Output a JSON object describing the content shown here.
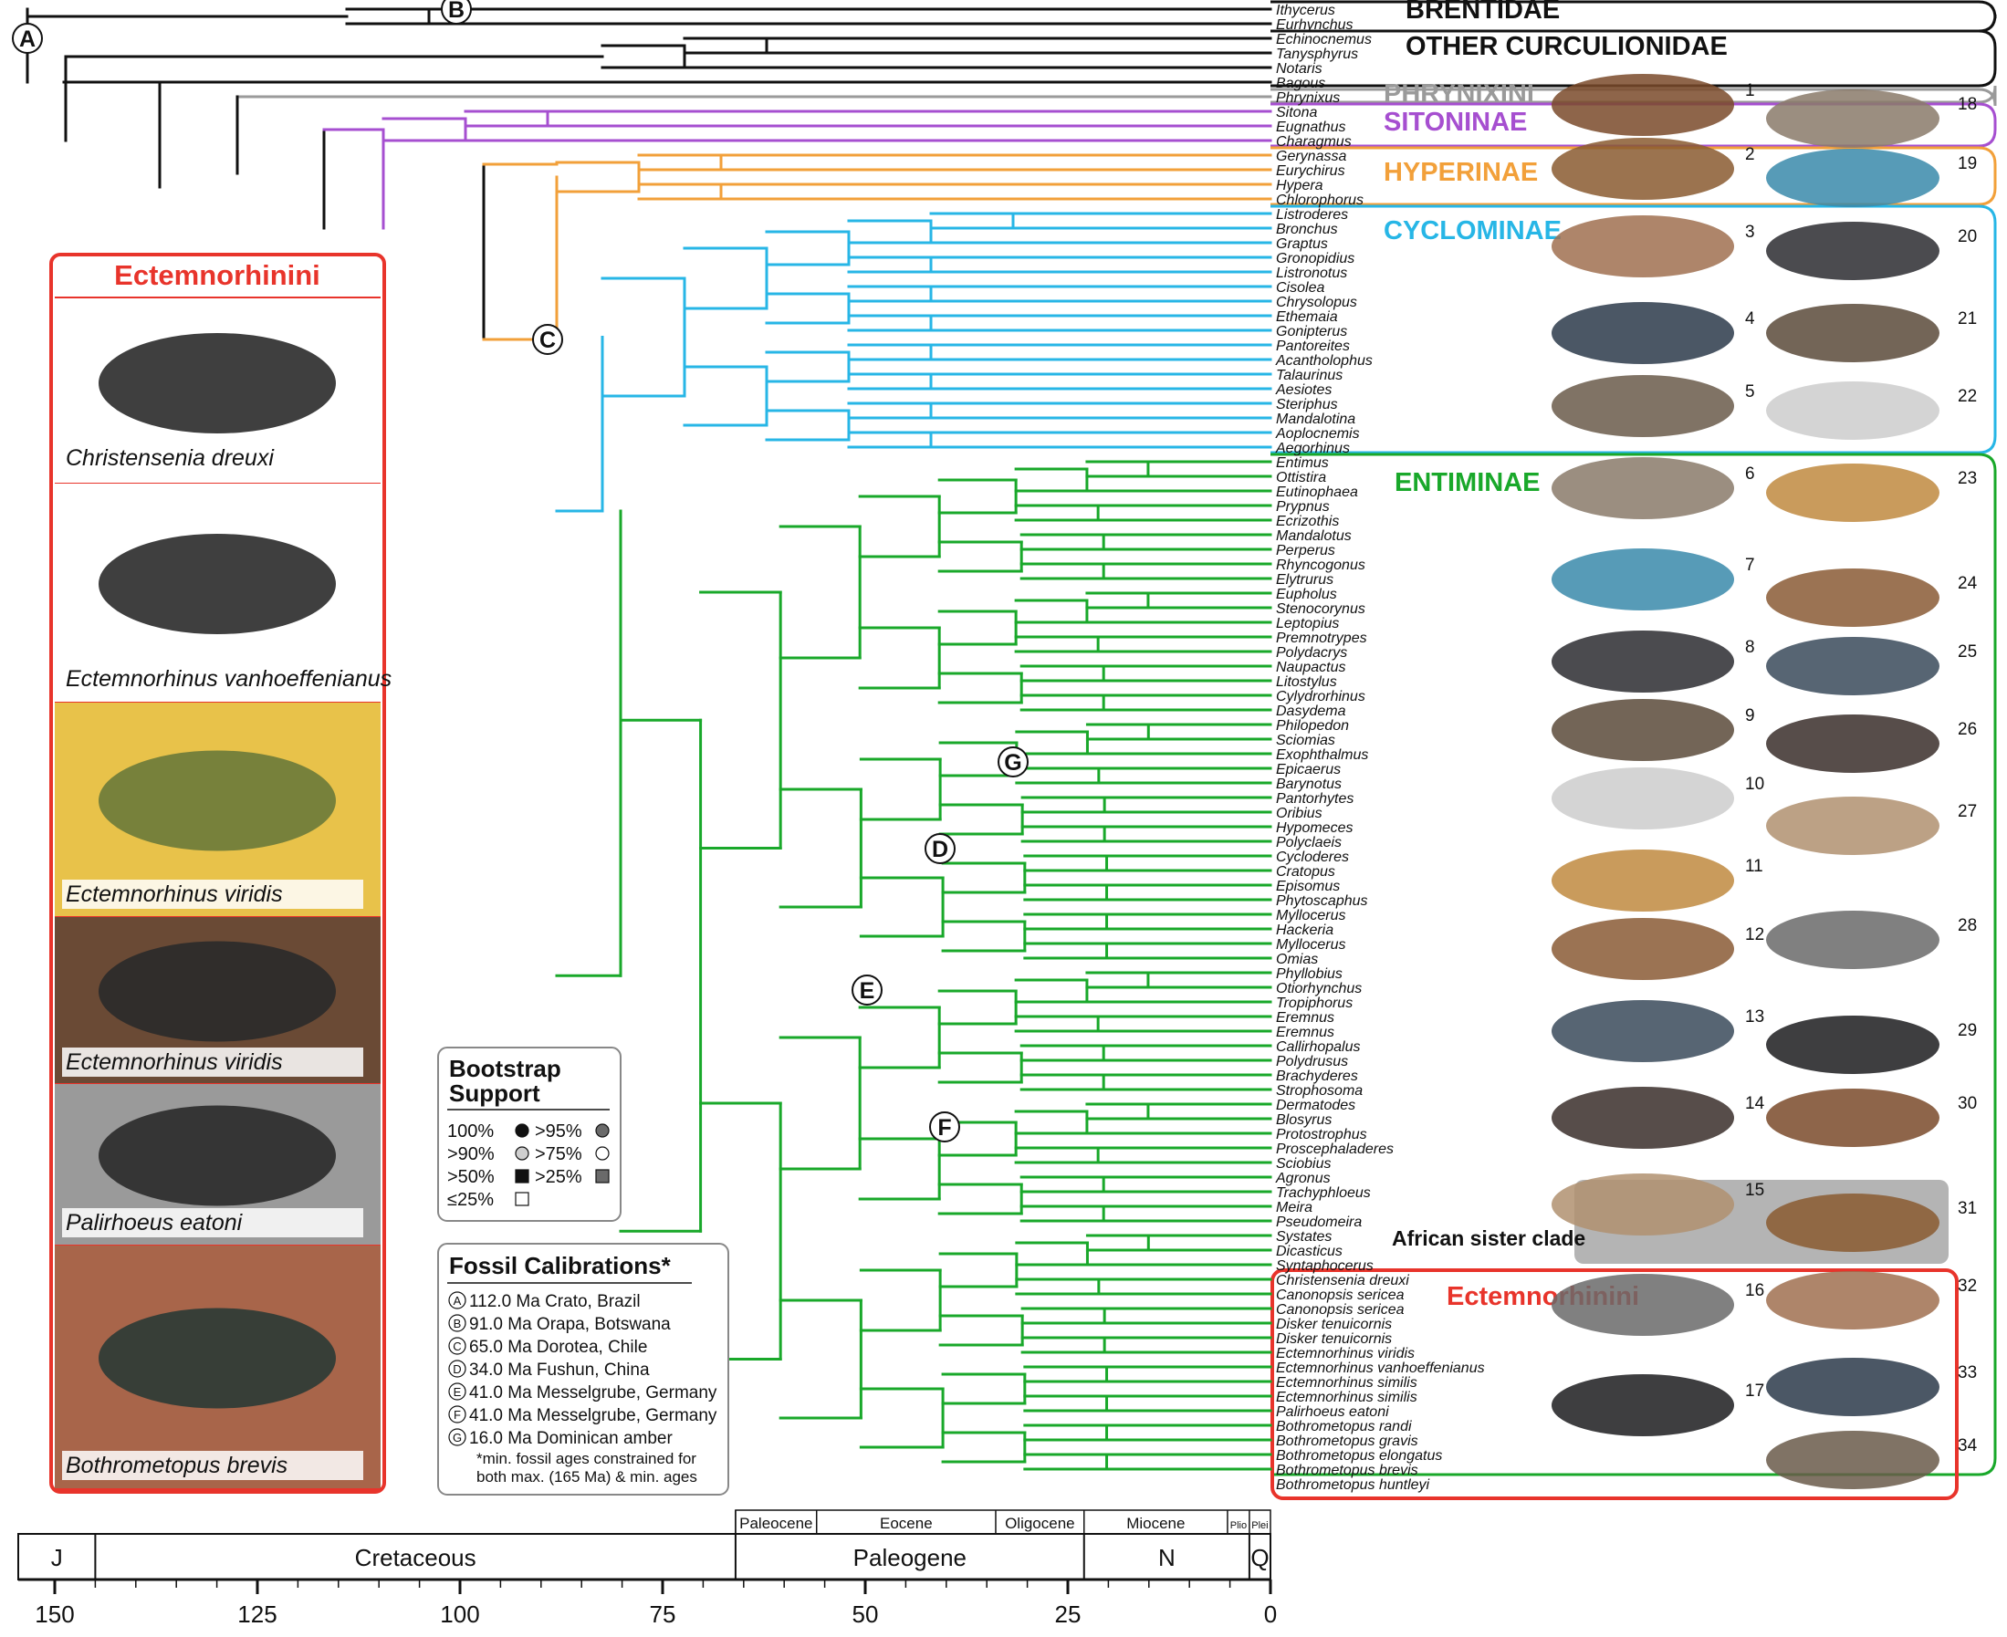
{
  "colors": {
    "outgroup": "#111111",
    "phrynixini": "#9a9a9a",
    "sitoninae": "#a64fd0",
    "hyperinae": "#f2a03a",
    "cyclominae": "#27b6e6",
    "entiminae": "#19a82a",
    "ectemnorhinini": "#e8342b",
    "african_box": "#b4b4b4"
  },
  "taxa": [
    "Ithycerus",
    "Eurhynchus",
    "Echinocnemus",
    "Tanysphyrus",
    "Notaris",
    "Bagous",
    "Phrynixus",
    "Sitona",
    "Eugnathus",
    "Charagmus",
    "Gerynassa",
    "Eurychirus",
    "Hypera",
    "Chlorophorus",
    "Listroderes",
    "Bronchus",
    "Graptus",
    "Gronopidius",
    "Listronotus",
    "Cisolea",
    "Chrysolopus",
    "Ethemaia",
    "Gonipterus",
    "Pantoreites",
    "Acantholophus",
    "Talaurinus",
    "Aesiotes",
    "Steriphus",
    "Mandalotina",
    "Aoplocnemis",
    "Aegorhinus",
    "Entimus",
    "Ottistira",
    "Eutinophaea",
    "Prypnus",
    "Ecrizothis",
    "Mandalotus",
    "Perperus",
    "Rhyncogonus",
    "Elytrurus",
    "Eupholus",
    "Stenocorynus",
    "Leptopius",
    "Premnotrypes",
    "Polydacrys",
    "Naupactus",
    "Litostylus",
    "Cylydrorhinus",
    "Dasydema",
    "Philopedon",
    "Sciomias",
    "Exophthalmus",
    "Epicaerus",
    "Barynotus",
    "Pantorhytes",
    "Oribius",
    "Hypomeces",
    "Polyclaeis",
    "Cycloderes",
    "Cratopus",
    "Episomus",
    "Phytoscaphus",
    "Myllocerus",
    "Hackeria",
    "Myllocerus",
    "Omias",
    "Phyllobius",
    "Otiorhynchus",
    "Tropiphorus",
    "Eremnus",
    "Eremnus",
    "Callirhopalus",
    "Polydrusus",
    "Brachyderes",
    "Strophosoma",
    "Dermatodes",
    "Blosyrus",
    "Protostrophus",
    "Proscephaladeres",
    "Sciobius",
    "Agronus",
    "Trachyphloeus",
    "Meira",
    "Pseudomeira",
    "Systates",
    "Dicasticus",
    "Syntaphocerus",
    "Christensenia dreuxi",
    "Canonopsis sericea",
    "Canonopsis sericea",
    "Disker tenuicornis",
    "Disker tenuicornis",
    "Ectemnorhinus viridis",
    "Ectemnorhinus vanhoeffenianus",
    "Ectemnorhinus similis",
    "Ectemnorhinus similis",
    "Palirhoeus eatoni",
    "Bothrometopus randi",
    "Bothrometopus gravis",
    "Bothrometopus elongatus",
    "Bothrometopus brevis",
    "Bothrometopus huntleyi"
  ],
  "groups": {
    "brentidae": "BRENTIDAE",
    "other_curc": "OTHER CURCULIONIDAE",
    "phrynixini": "PHRYNIXINI",
    "sitoninae": "SITONINAE",
    "hyperinae": "HYPERINAE",
    "cyclominae": "CYCLOMINAE",
    "entiminae": "ENTIMINAE",
    "ectemnorhinini": "Ectemnorhinini",
    "african": "African sister clade"
  },
  "node_labels": [
    "A",
    "B",
    "C",
    "D",
    "E",
    "F",
    "G"
  ],
  "left_panel": {
    "title": "Ectemnorhinini",
    "captions": [
      "Christensenia dreuxi",
      "Ectemnorhinus vanhoeffenianus",
      "Ectemnorhinus viridis",
      "Ectemnorhinus viridis",
      "Palirhoeus eatoni",
      "Bothrometopus brevis"
    ]
  },
  "photo_numbers": {
    "left": [
      "1",
      "2",
      "3",
      "4",
      "5",
      "6",
      "7",
      "8",
      "9",
      "10",
      "11",
      "12",
      "13",
      "14",
      "15",
      "16",
      "17"
    ],
    "right": [
      "18",
      "19",
      "20",
      "21",
      "22",
      "23",
      "24",
      "25",
      "26",
      "27",
      "28",
      "29",
      "30",
      "31",
      "32",
      "33",
      "34"
    ]
  },
  "bootstrap": {
    "title_line1": "Bootstrap",
    "title_line2": "Support",
    "rows": [
      [
        "100%",
        ">95%"
      ],
      [
        ">90%",
        ">75%"
      ],
      [
        ">50%",
        ">25%"
      ],
      [
        "≤25%",
        ""
      ]
    ]
  },
  "fossils": {
    "title": "Fossil Calibrations*",
    "items": [
      {
        "letter": "A",
        "text": "112.0 Ma Crato, Brazil"
      },
      {
        "letter": "B",
        "text": "91.0 Ma Orapa, Botswana"
      },
      {
        "letter": "C",
        "text": "65.0 Ma Dorotea, Chile"
      },
      {
        "letter": "D",
        "text": "34.0 Ma Fushun, China"
      },
      {
        "letter": "E",
        "text": "41.0 Ma Messelgrube, Germany"
      },
      {
        "letter": "F",
        "text": "41.0 Ma Messelgrube, Germany"
      },
      {
        "letter": "G",
        "text": "16.0 Ma Dominican amber"
      }
    ],
    "note_line1": "*min. fossil ages constrained for",
    "note_line2": "both max. (165 Ma) & min. ages"
  },
  "timescale": {
    "ticks": [
      "150",
      "125",
      "100",
      "75",
      "50",
      "25",
      "0"
    ],
    "periods": [
      "J",
      "Cretaceous",
      "Paleogene",
      "N",
      "Q"
    ],
    "epochs": [
      "Paleocene",
      "Eocene",
      "Oligocene",
      "Miocene",
      "Plio",
      "Plei"
    ]
  }
}
